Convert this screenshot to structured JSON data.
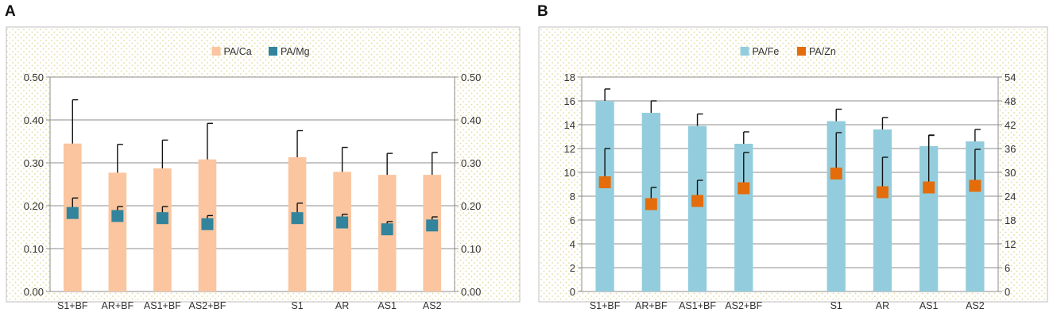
{
  "panels": [
    {
      "label": "A"
    },
    {
      "label": "B"
    }
  ],
  "colors": {
    "bar_a": "#fbc59f",
    "marker_a": "#31849b",
    "bar_b": "#93cddd",
    "marker_b": "#e46c0a",
    "grid": "#8c8c8c",
    "error": "#111111",
    "dots": "#e3d99c"
  },
  "chart_data": [
    {
      "type": "bar",
      "panel": "A",
      "categories": [
        "S1+BF",
        "AR+BF",
        "AS1+BF",
        "AS2+BF",
        "",
        "S1",
        "AR",
        "AS1",
        "AS2"
      ],
      "legend": [
        "PA/Ca",
        "PA/Mg"
      ],
      "legend_position": "top-center",
      "y_left": {
        "ticks": [
          "0.00",
          "0.10",
          "0.20",
          "0.30",
          "0.40",
          "0.50"
        ],
        "range": [
          0,
          0.5
        ]
      },
      "y_right": {
        "ticks": [
          "0.00",
          "0.10",
          "0.20",
          "0.30",
          "0.40",
          "0.50"
        ],
        "range": [
          0,
          0.5
        ]
      },
      "grid": true,
      "series": [
        {
          "name": "PA/Ca",
          "kind": "bar",
          "axis": "left",
          "values": [
            0.345,
            0.277,
            0.287,
            0.308,
            null,
            0.313,
            0.279,
            0.272,
            0.272
          ],
          "errors": [
            0.447,
            0.343,
            0.353,
            0.392,
            null,
            0.375,
            0.336,
            0.322,
            0.324
          ]
        },
        {
          "name": "PA/Mg",
          "kind": "marker",
          "axis": "left",
          "values": [
            0.183,
            0.176,
            0.171,
            0.157,
            null,
            0.171,
            0.161,
            0.145,
            0.154
          ],
          "errors": [
            0.218,
            0.198,
            0.198,
            0.177,
            null,
            0.206,
            0.18,
            0.163,
            0.174
          ]
        }
      ]
    },
    {
      "type": "bar",
      "panel": "B",
      "categories": [
        "S1+BF",
        "AR+BF",
        "AS1+BF",
        "AS2+BF",
        "",
        "S1",
        "AR",
        "AS1",
        "AS2"
      ],
      "legend": [
        "PA/Fe",
        "PA/Zn"
      ],
      "legend_position": "top-center",
      "y_left": {
        "ticks": [
          "0",
          "2",
          "4",
          "6",
          "8",
          "10",
          "12",
          "14",
          "16",
          "18"
        ],
        "range": [
          0,
          18
        ]
      },
      "y_right": {
        "ticks": [
          "0",
          "6",
          "12",
          "18",
          "24",
          "30",
          "36",
          "42",
          "48",
          "54"
        ],
        "range": [
          0,
          54
        ]
      },
      "grid": true,
      "series": [
        {
          "name": "PA/Fe",
          "kind": "bar",
          "axis": "left",
          "values": [
            16.0,
            15.0,
            13.9,
            12.4,
            null,
            14.3,
            13.6,
            12.2,
            12.6
          ],
          "errors": [
            17.0,
            16.0,
            14.9,
            13.4,
            null,
            15.3,
            14.6,
            13.1,
            13.6
          ]
        },
        {
          "name": "PA/Zn",
          "kind": "marker",
          "axis": "right",
          "values": [
            27.5,
            22.0,
            22.8,
            26.0,
            null,
            29.7,
            25.0,
            26.2,
            26.6
          ],
          "errors": [
            36.0,
            26.2,
            28.0,
            35.0,
            null,
            40.0,
            33.8,
            39.4,
            35.8
          ]
        }
      ]
    }
  ]
}
